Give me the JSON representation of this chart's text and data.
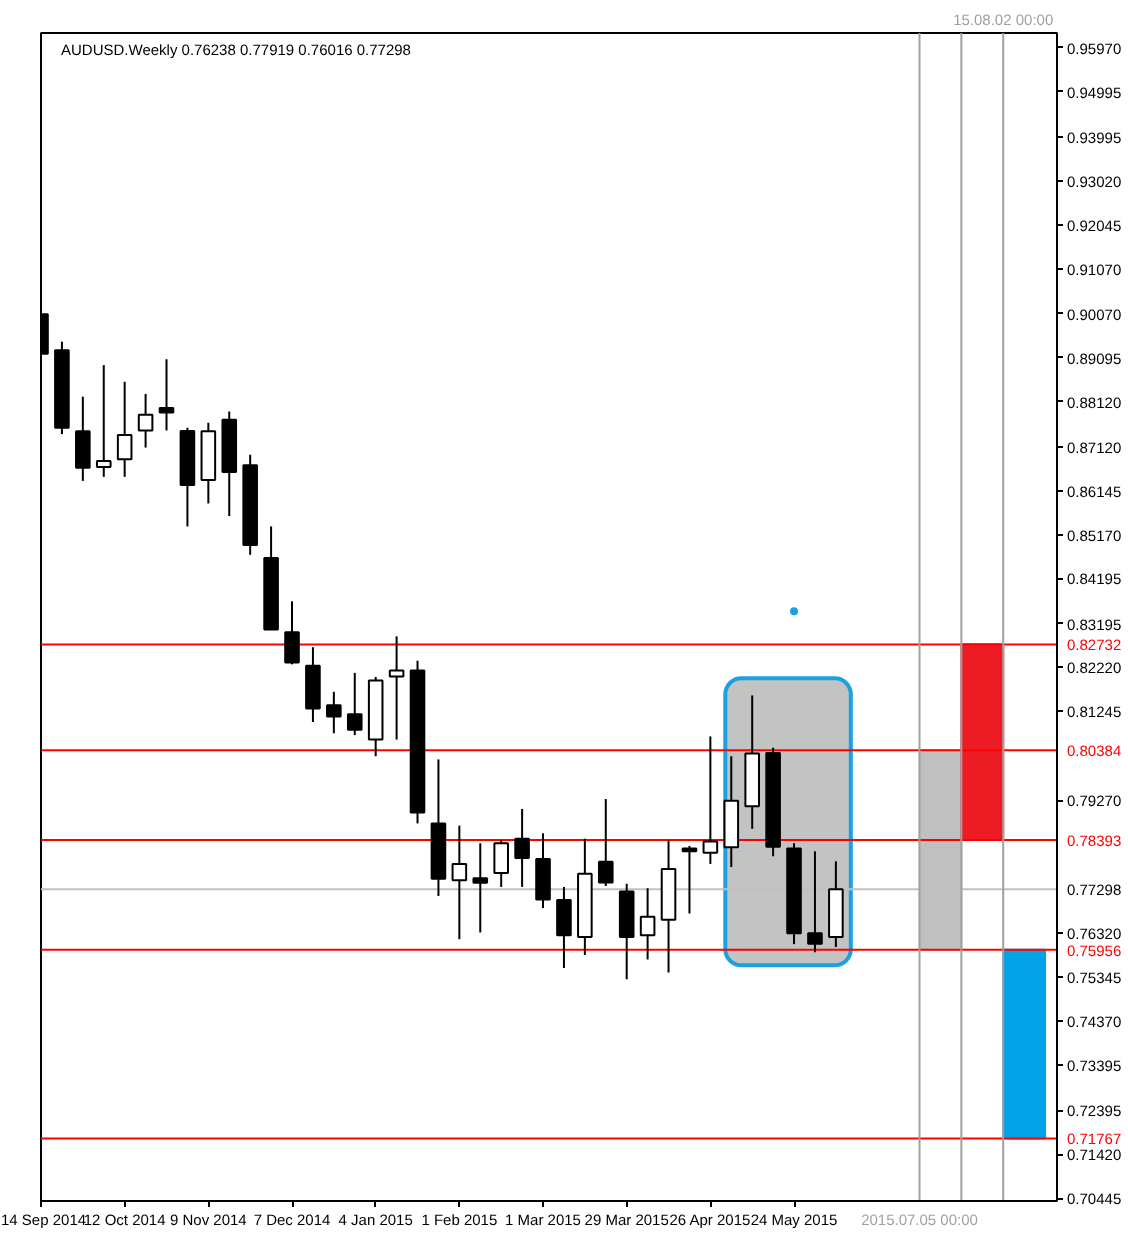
{
  "chart_data": {
    "type": "candlestick",
    "title": "AUDUSD.Weekly 0.76238 0.77919 0.76016 0.77298",
    "color": "#000000",
    "x": [
      "2014-09-14",
      "2014-09-21",
      "2014-09-28",
      "2014-10-05",
      "2014-10-12",
      "2014-10-19",
      "2014-10-26",
      "2014-11-02",
      "2014-11-09",
      "2014-11-16",
      "2014-11-23",
      "2014-11-30",
      "2014-12-07",
      "2014-12-14",
      "2014-12-21",
      "2014-12-28",
      "2015-01-04",
      "2015-01-11",
      "2015-01-18",
      "2015-01-25",
      "2015-02-01",
      "2015-02-08",
      "2015-02-15",
      "2015-02-22",
      "2015-03-01",
      "2015-03-08",
      "2015-03-15",
      "2015-03-22",
      "2015-03-29",
      "2015-04-05",
      "2015-04-12",
      "2015-04-19",
      "2015-04-26",
      "2015-05-03",
      "2015-05-10",
      "2015-05-17",
      "2015-05-24",
      "2015-05-31",
      "2015-06-07"
    ],
    "ohlc": [
      [
        0.9006,
        0.9109,
        0.8918,
        0.8918
      ],
      [
        0.8926,
        0.8945,
        0.874,
        0.8754
      ],
      [
        0.8746,
        0.8823,
        0.8636,
        0.8665
      ],
      [
        0.8667,
        0.8893,
        0.8645,
        0.868
      ],
      [
        0.8684,
        0.8856,
        0.8645,
        0.8738
      ],
      [
        0.8748,
        0.8829,
        0.871,
        0.8783
      ],
      [
        0.8798,
        0.8906,
        0.8748,
        0.8788
      ],
      [
        0.8747,
        0.8754,
        0.8535,
        0.8627
      ],
      [
        0.8638,
        0.8765,
        0.8586,
        0.8746
      ],
      [
        0.8772,
        0.879,
        0.8558,
        0.8656
      ],
      [
        0.8671,
        0.8694,
        0.8472,
        0.8494
      ],
      [
        0.8465,
        0.8535,
        0.8305,
        0.8306
      ],
      [
        0.83,
        0.8369,
        0.8229,
        0.8233
      ],
      [
        0.8226,
        0.8267,
        0.8101,
        0.8131
      ],
      [
        0.8138,
        0.8168,
        0.8076,
        0.8113
      ],
      [
        0.8118,
        0.821,
        0.8072,
        0.8084
      ],
      [
        0.8062,
        0.8201,
        0.8025,
        0.8193
      ],
      [
        0.8202,
        0.8291,
        0.8062,
        0.8215
      ],
      [
        0.8215,
        0.8237,
        0.7876,
        0.79
      ],
      [
        0.7876,
        0.8018,
        0.7715,
        0.7753
      ],
      [
        0.775,
        0.7871,
        0.7619,
        0.7786
      ],
      [
        0.7754,
        0.7832,
        0.7634,
        0.7744
      ],
      [
        0.7766,
        0.7839,
        0.7735,
        0.7832
      ],
      [
        0.7842,
        0.7908,
        0.7735,
        0.7799
      ],
      [
        0.7797,
        0.7854,
        0.7688,
        0.7707
      ],
      [
        0.7706,
        0.7735,
        0.7555,
        0.7628
      ],
      [
        0.7624,
        0.7842,
        0.7584,
        0.7764
      ],
      [
        0.7791,
        0.793,
        0.7737,
        0.7745
      ],
      [
        0.7725,
        0.7742,
        0.753,
        0.7624
      ],
      [
        0.7628,
        0.7732,
        0.7574,
        0.7669
      ],
      [
        0.7662,
        0.7838,
        0.7545,
        0.7775
      ],
      [
        0.782,
        0.7826,
        0.7676,
        0.7814
      ],
      [
        0.7811,
        0.8069,
        0.7786,
        0.7836
      ],
      [
        0.7823,
        0.8025,
        0.7779,
        0.7926
      ],
      [
        0.7914,
        0.816,
        0.7864,
        0.8031
      ],
      [
        0.8032,
        0.8044,
        0.7803,
        0.7824
      ],
      [
        0.782,
        0.7832,
        0.7608,
        0.7632
      ],
      [
        0.7632,
        0.7814,
        0.759,
        0.7609
      ],
      [
        0.76238,
        0.77919,
        0.76016,
        0.77298
      ]
    ],
    "series": [
      {
        "type": "bar",
        "x": [
          "2015-05-22"
        ],
        "base": [
          0.7561
        ],
        "values": [
          0.0637
        ],
        "color": "#c3c3c3"
      },
      {
        "type": "bar",
        "x": [
          "2015-07-12",
          "2015-07-26",
          "2015-08-09"
        ],
        "base": [
          0.75956,
          0.78393,
          0.71767
        ],
        "values": [
          0.0443,
          0.0434,
          0.0419
        ],
        "colors": [
          "#c0c0c0",
          "#ed1c24",
          "#00a2e8"
        ]
      },
      {
        "type": "scatter",
        "x": [
          "2015-05-24"
        ],
        "values": [
          0.8347
        ],
        "color": "#1ba1e2",
        "marker": "circle"
      }
    ],
    "xlim": [
      "2014-09-14",
      "2015-08-20"
    ],
    "xticks": [
      {
        "value": "2014-09-14",
        "label": "14 Sep 2014"
      },
      {
        "value": "2014-10-12",
        "label": "12 Oct 2014"
      },
      {
        "value": "2014-11-09",
        "label": "9 Nov 2014"
      },
      {
        "value": "2014-12-07",
        "label": "7 Dec 2014"
      },
      {
        "value": "2015-01-04",
        "label": "4 Jan 2015"
      },
      {
        "value": "2015-02-01",
        "label": "1 Feb 2015"
      },
      {
        "value": "2015-03-01",
        "label": "1 Mar 2015"
      },
      {
        "value": "2015-03-29",
        "label": "29 Mar 2015"
      },
      {
        "value": "2015-04-26",
        "label": "26 Apr 2015"
      },
      {
        "value": "2015-05-24",
        "label": "24 May 2015"
      }
    ],
    "ylim": [
      0.7038,
      0.963
    ],
    "yticks": [
      {
        "value": 0.9597,
        "label": "0.95970"
      },
      0.94995,
      0.93995,
      {
        "value": 0.9302,
        "label": "0.93020"
      },
      0.92045,
      {
        "value": 0.9107,
        "label": "0.91070"
      },
      {
        "value": 0.9007,
        "label": "0.90070"
      },
      0.89095,
      {
        "value": 0.8812,
        "label": "0.88120"
      },
      {
        "value": 0.8712,
        "label": "0.87120"
      },
      0.86145,
      {
        "value": 0.8517,
        "label": "0.85170"
      },
      0.84195,
      0.83195,
      {
        "value": 0.8222,
        "label": "0.82220"
      },
      0.81245,
      {
        "value": 0.7927,
        "label": "0.79270"
      },
      {
        "value": 0.7632,
        "label": "0.76320"
      },
      0.75345,
      {
        "value": 0.7437,
        "label": "0.74370"
      },
      0.73395,
      0.72395,
      {
        "value": 0.7142,
        "label": "0.71420"
      },
      0.70445
    ],
    "ref_lines": [
      {
        "axis": "y",
        "value": 0.82732,
        "label": "0.82732",
        "color": "#ff0000"
      },
      {
        "axis": "y",
        "value": 0.80384,
        "label": "0.80384",
        "color": "#ff0000"
      },
      {
        "axis": "y",
        "value": 0.78393,
        "label": "0.78393",
        "color": "#ff0000"
      },
      {
        "axis": "y",
        "value": 0.77298,
        "label": "0.77298",
        "color": "#c0c0c0"
      },
      {
        "axis": "y",
        "value": 0.75956,
        "label": "0.75956",
        "color": "#ff0000"
      },
      {
        "axis": "y",
        "value": 0.71767,
        "label": "0.71767",
        "color": "#ff0000"
      },
      {
        "axis": "x",
        "value": "2015-07-05",
        "label": "2015.07.05 00:00",
        "color": "#a0a0a0"
      },
      {
        "axis": "x",
        "value": "2015-07-19",
        "color": "#a0a0a0"
      },
      {
        "axis": "x",
        "value": "2015-08-02",
        "label": "15.08.02 00:00",
        "color": "#a0a0a0"
      }
    ]
  }
}
